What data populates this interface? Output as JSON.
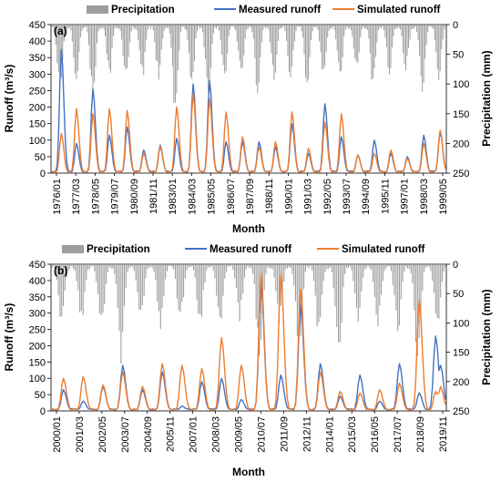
{
  "chart_data": [
    {
      "type": "line",
      "panel_label": "(a)",
      "xlabel": "Month",
      "ylabel": "Runoff (m³/s)",
      "y2label": "Precipitation (mm)",
      "ylim": [
        0,
        450
      ],
      "y2lim": [
        250,
        0
      ],
      "yticks": [
        0,
        50,
        100,
        150,
        200,
        250,
        300,
        350,
        400,
        450
      ],
      "y2ticks": [
        0,
        50,
        100,
        150,
        200,
        250
      ],
      "xlim": [
        "1976/01",
        "1999/12"
      ],
      "xtick_labels": [
        "1976/01",
        "1977/03",
        "1978/05",
        "1979/07",
        "1980/09",
        "1981/11",
        "1983/01",
        "1984/03",
        "1985/05",
        "1986/07",
        "1987/09",
        "1988/11",
        "1990/01",
        "1991/03",
        "1992/05",
        "1993/07",
        "1994/09",
        "1995/11",
        "1997/01",
        "1998/03",
        "1999/05"
      ],
      "legend": [
        "Precipitation",
        "Measured runoff",
        "Simulated runoff"
      ],
      "legend_position": "top",
      "colors": {
        "precipitation": "#9d9d9d",
        "measured": "#4472c4",
        "simulated": "#ed7d31"
      },
      "series": [
        {
          "name": "Precipitation",
          "style": "bars-from-top",
          "peaks": [
            {
              "x": "1976/07",
              "y": 110
            },
            {
              "x": "1977/07",
              "y": 95
            },
            {
              "x": "1978/07",
              "y": 120
            },
            {
              "x": "1979/07",
              "y": 85
            },
            {
              "x": "1980/07",
              "y": 100
            },
            {
              "x": "1981/07",
              "y": 90
            },
            {
              "x": "1982/07",
              "y": 95
            },
            {
              "x": "1983/07",
              "y": 140
            },
            {
              "x": "1984/07",
              "y": 100
            },
            {
              "x": "1985/07",
              "y": 130
            },
            {
              "x": "1986/07",
              "y": 85
            },
            {
              "x": "1987/07",
              "y": 90
            },
            {
              "x": "1988/07",
              "y": 110
            },
            {
              "x": "1989/07",
              "y": 95
            },
            {
              "x": "1990/07",
              "y": 90
            },
            {
              "x": "1991/07",
              "y": 100
            },
            {
              "x": "1992/07",
              "y": 95
            },
            {
              "x": "1993/07",
              "y": 90
            },
            {
              "x": "1994/07",
              "y": 80
            },
            {
              "x": "1995/07",
              "y": 105
            },
            {
              "x": "1996/07",
              "y": 85
            },
            {
              "x": "1997/07",
              "y": 80
            },
            {
              "x": "1998/07",
              "y": 110
            },
            {
              "x": "1999/07",
              "y": 85
            }
          ]
        },
        {
          "name": "Measured runoff",
          "peaks": [
            {
              "x": "1976/08",
              "y": 375
            },
            {
              "x": "1977/07",
              "y": 90
            },
            {
              "x": "1978/07",
              "y": 255
            },
            {
              "x": "1979/07",
              "y": 115
            },
            {
              "x": "1980/08",
              "y": 140
            },
            {
              "x": "1981/08",
              "y": 70
            },
            {
              "x": "1982/08",
              "y": 85
            },
            {
              "x": "1983/08",
              "y": 105
            },
            {
              "x": "1984/08",
              "y": 270
            },
            {
              "x": "1985/08",
              "y": 280
            },
            {
              "x": "1986/08",
              "y": 95
            },
            {
              "x": "1987/08",
              "y": 95
            },
            {
              "x": "1988/08",
              "y": 95
            },
            {
              "x": "1989/08",
              "y": 80
            },
            {
              "x": "1990/08",
              "y": 150
            },
            {
              "x": "1991/08",
              "y": 60
            },
            {
              "x": "1992/08",
              "y": 210
            },
            {
              "x": "1993/08",
              "y": 110
            },
            {
              "x": "1994/08",
              "y": 55
            },
            {
              "x": "1995/08",
              "y": 100
            },
            {
              "x": "1996/08",
              "y": 60
            },
            {
              "x": "1997/08",
              "y": 50
            },
            {
              "x": "1998/08",
              "y": 115
            },
            {
              "x": "1999/08",
              "y": 125
            }
          ]
        },
        {
          "name": "Simulated runoff",
          "peaks": [
            {
              "x": "1976/08",
              "y": 120
            },
            {
              "x": "1977/07",
              "y": 195
            },
            {
              "x": "1978/07",
              "y": 180
            },
            {
              "x": "1979/07",
              "y": 195
            },
            {
              "x": "1980/08",
              "y": 190
            },
            {
              "x": "1981/08",
              "y": 60
            },
            {
              "x": "1982/08",
              "y": 80
            },
            {
              "x": "1983/08",
              "y": 200
            },
            {
              "x": "1984/08",
              "y": 240
            },
            {
              "x": "1985/08",
              "y": 225
            },
            {
              "x": "1986/08",
              "y": 185
            },
            {
              "x": "1987/08",
              "y": 110
            },
            {
              "x": "1988/08",
              "y": 80
            },
            {
              "x": "1989/08",
              "y": 95
            },
            {
              "x": "1990/08",
              "y": 185
            },
            {
              "x": "1991/08",
              "y": 75
            },
            {
              "x": "1992/08",
              "y": 155
            },
            {
              "x": "1993/08",
              "y": 180
            },
            {
              "x": "1994/08",
              "y": 55
            },
            {
              "x": "1995/08",
              "y": 60
            },
            {
              "x": "1996/08",
              "y": 70
            },
            {
              "x": "1997/08",
              "y": 45
            },
            {
              "x": "1998/08",
              "y": 90
            },
            {
              "x": "1999/08",
              "y": 130
            }
          ]
        }
      ]
    },
    {
      "type": "line",
      "panel_label": "(b)",
      "xlabel": "Month",
      "ylabel": "Runoff (m³/s)",
      "y2label": "Precipitation (mm)",
      "ylim": [
        0,
        450
      ],
      "y2lim": [
        250,
        0
      ],
      "yticks": [
        0,
        50,
        100,
        150,
        200,
        250,
        300,
        350,
        400,
        450
      ],
      "y2ticks": [
        0,
        50,
        100,
        150,
        200,
        250
      ],
      "xlim": [
        "2000/01",
        "2019/12"
      ],
      "xtick_labels": [
        "2000/01",
        "2001/03",
        "2002/05",
        "2003/07",
        "2004/09",
        "2005/11",
        "2007/01",
        "2008/03",
        "2009/05",
        "2010/07",
        "2011/09",
        "2012/11",
        "2014/01",
        "2015/03",
        "2016/05",
        "2017/07",
        "2018/09",
        "2019/11"
      ],
      "legend": [
        "Precipitation",
        "Measured runoff",
        "Simulated runoff"
      ],
      "legend_position": "top",
      "colors": {
        "precipitation": "#9d9d9d",
        "measured": "#4472c4",
        "simulated": "#ed7d31"
      },
      "series": [
        {
          "name": "Precipitation",
          "style": "bars-from-top",
          "peaks": [
            {
              "x": "2000/07",
              "y": 95
            },
            {
              "x": "2001/07",
              "y": 100
            },
            {
              "x": "2002/07",
              "y": 110
            },
            {
              "x": "2003/07",
              "y": 155
            },
            {
              "x": "2004/07",
              "y": 95
            },
            {
              "x": "2005/07",
              "y": 110
            },
            {
              "x": "2006/07",
              "y": 95
            },
            {
              "x": "2007/07",
              "y": 100
            },
            {
              "x": "2008/07",
              "y": 110
            },
            {
              "x": "2009/07",
              "y": 90
            },
            {
              "x": "2010/07",
              "y": 150
            },
            {
              "x": "2011/07",
              "y": 95
            },
            {
              "x": "2012/07",
              "y": 140
            },
            {
              "x": "2013/07",
              "y": 120
            },
            {
              "x": "2014/07",
              "y": 160
            },
            {
              "x": "2015/07",
              "y": 95
            },
            {
              "x": "2016/07",
              "y": 100
            },
            {
              "x": "2017/07",
              "y": 115
            },
            {
              "x": "2018/07",
              "y": 150
            },
            {
              "x": "2019/07",
              "y": 110
            }
          ]
        },
        {
          "name": "Measured runoff",
          "peaks": [
            {
              "x": "2000/08",
              "y": 65
            },
            {
              "x": "2001/08",
              "y": 30
            },
            {
              "x": "2002/08",
              "y": 75
            },
            {
              "x": "2003/08",
              "y": 140
            },
            {
              "x": "2004/08",
              "y": 65
            },
            {
              "x": "2005/08",
              "y": 120
            },
            {
              "x": "2006/08",
              "y": 15
            },
            {
              "x": "2007/08",
              "y": 90
            },
            {
              "x": "2008/08",
              "y": 100
            },
            {
              "x": "2009/08",
              "y": 35
            },
            {
              "x": "2010/08",
              "y": 390
            },
            {
              "x": "2011/08",
              "y": 110
            },
            {
              "x": "2012/08",
              "y": 325
            },
            {
              "x": "2013/08",
              "y": 145
            },
            {
              "x": "2014/08",
              "y": 45
            },
            {
              "x": "2015/08",
              "y": 110
            },
            {
              "x": "2016/08",
              "y": 30
            },
            {
              "x": "2017/08",
              "y": 145
            },
            {
              "x": "2018/08",
              "y": 55
            },
            {
              "x": "2019/06",
              "y": 230
            },
            {
              "x": "2019/09",
              "y": 140
            }
          ]
        },
        {
          "name": "Simulated runoff",
          "peaks": [
            {
              "x": "2000/08",
              "y": 100
            },
            {
              "x": "2001/08",
              "y": 105
            },
            {
              "x": "2002/08",
              "y": 80
            },
            {
              "x": "2003/08",
              "y": 120
            },
            {
              "x": "2004/08",
              "y": 75
            },
            {
              "x": "2005/08",
              "y": 145
            },
            {
              "x": "2006/08",
              "y": 140
            },
            {
              "x": "2007/08",
              "y": 130
            },
            {
              "x": "2008/08",
              "y": 225
            },
            {
              "x": "2009/08",
              "y": 140
            },
            {
              "x": "2010/08",
              "y": 420
            },
            {
              "x": "2011/08",
              "y": 420
            },
            {
              "x": "2012/08",
              "y": 375
            },
            {
              "x": "2013/08",
              "y": 120
            },
            {
              "x": "2014/08",
              "y": 60
            },
            {
              "x": "2015/08",
              "y": 55
            },
            {
              "x": "2016/08",
              "y": 65
            },
            {
              "x": "2017/08",
              "y": 85
            },
            {
              "x": "2018/08",
              "y": 340
            },
            {
              "x": "2019/06",
              "y": 60
            },
            {
              "x": "2019/09",
              "y": 75
            }
          ]
        }
      ]
    }
  ]
}
